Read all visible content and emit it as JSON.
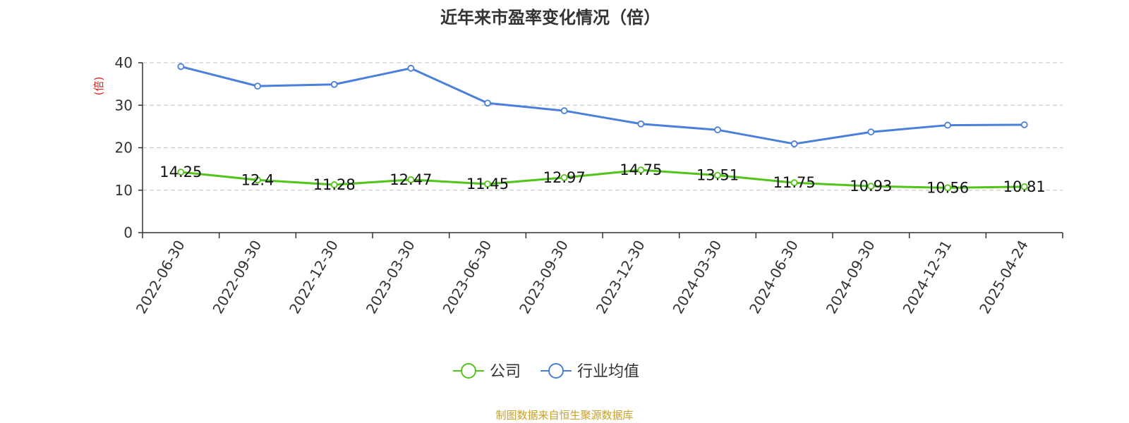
{
  "chart_data": {
    "type": "line",
    "title": "近年来市盈率变化情况（倍）",
    "ylabel": "(倍)",
    "ylim": [
      0,
      40
    ],
    "yticks": [
      0,
      10,
      20,
      30,
      40
    ],
    "grid": true,
    "legend_position": "bottom",
    "categories": [
      "2022-06-30",
      "2022-09-30",
      "2022-12-30",
      "2023-03-30",
      "2023-06-30",
      "2023-09-30",
      "2023-12-30",
      "2024-03-30",
      "2024-06-30",
      "2024-09-30",
      "2024-12-31",
      "2025-04-24"
    ],
    "series": [
      {
        "name": "公司",
        "color": "#52c41a",
        "show_labels": true,
        "values": [
          14.25,
          12.4,
          11.28,
          12.47,
          11.45,
          12.97,
          14.75,
          13.51,
          11.75,
          10.93,
          10.56,
          10.81
        ]
      },
      {
        "name": "行业均值",
        "color": "#4a7fdc",
        "show_labels": false,
        "values": [
          39.1,
          34.5,
          34.9,
          38.7,
          30.5,
          28.7,
          25.6,
          24.2,
          20.9,
          23.7,
          25.3,
          25.4
        ]
      }
    ]
  },
  "footer": {
    "source": "制图数据来自恒生聚源数据库",
    "source_color": "#c8a02a"
  },
  "colors": {
    "title": "#333333",
    "axis": "#333333",
    "grid": "#cccccc",
    "ylabel": "#e02020"
  }
}
